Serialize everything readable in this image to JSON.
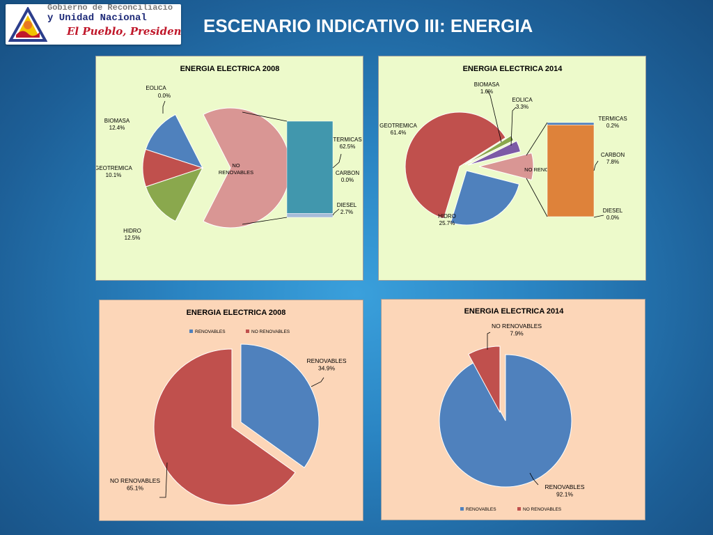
{
  "header": {
    "title": "ESCENARIO INDICATIVO III: ENERGIA",
    "logo_line1": "Gobierno de Reconciliacio",
    "logo_line2": "y Unidad Nacional",
    "logo_line3": "El Pueblo, Presidente!"
  },
  "colors": {
    "blue": "#4f81bd",
    "red": "#c0504d",
    "green": "#8aa84d",
    "purple": "#7d5ba6",
    "pink": "#d99694",
    "teal": "#4197ad",
    "orange": "#de823a",
    "lightblue": "#a6bcd8",
    "panel_green": "#edfacb",
    "panel_peach": "#fcd6b8"
  },
  "chart_data": [
    {
      "type": "pie",
      "subtype": "pie-of-bar",
      "title": "ENERGIA ELECTRICA 2008",
      "slices": [
        {
          "name": "EOLICA",
          "value": 0.0,
          "label": "0.0%"
        },
        {
          "name": "BIOMASA",
          "value": 12.4,
          "label": "12.4%"
        },
        {
          "name": "GEOTREMICA",
          "value": 10.1,
          "label": "10.1%"
        },
        {
          "name": "HIDRO",
          "value": 12.5,
          "label": "12.5%"
        },
        {
          "name": "NO RENOVABLES",
          "value": 65.0,
          "label": ""
        }
      ],
      "bar_segments": [
        {
          "name": "TERMICAS",
          "value": 62.5,
          "label": "62.5%"
        },
        {
          "name": "CARBON",
          "value": 0.0,
          "label": "0.0%"
        },
        {
          "name": "DIESEL",
          "value": 2.7,
          "label": "2.7%"
        }
      ]
    },
    {
      "type": "pie",
      "subtype": "pie-of-bar",
      "title": "ENERGIA ELECTRICA 2014",
      "slices": [
        {
          "name": "GEOTREMICA",
          "value": 61.4,
          "label": "61.4%"
        },
        {
          "name": "BIOMASA",
          "value": 1.6,
          "label": "1.6%"
        },
        {
          "name": "EOLICA",
          "value": 3.3,
          "label": "3.3%"
        },
        {
          "name": "NO RENOVABLES",
          "value": 8.0,
          "label": ""
        },
        {
          "name": "HIDRO",
          "value": 25.7,
          "label": "25.7%"
        }
      ],
      "bar_segments": [
        {
          "name": "TERMICAS",
          "value": 0.2,
          "label": "0.2%"
        },
        {
          "name": "CARBON",
          "value": 7.8,
          "label": "7.8%"
        },
        {
          "name": "DIESEL",
          "value": 0.0,
          "label": "0.0%"
        }
      ]
    },
    {
      "type": "pie",
      "title": "ENERGIA ELECTRICA 2008",
      "legend": [
        "RENOVABLES",
        "NO RENOVABLES"
      ],
      "legend_position": "top",
      "slices": [
        {
          "name": "RENOVABLES",
          "value": 34.9,
          "label": "34.9%"
        },
        {
          "name": "NO RENOVABLES",
          "value": 65.1,
          "label": "65.1%"
        }
      ]
    },
    {
      "type": "pie",
      "title": "ENERGIA ELECTRICA 2014",
      "legend": [
        "RENOVABLES",
        "NO RENOVABLES"
      ],
      "legend_position": "bottom",
      "slices": [
        {
          "name": "RENOVABLES",
          "value": 92.1,
          "label": "92.1%"
        },
        {
          "name": "NO RENOVABLES",
          "value": 7.9,
          "label": "7.9%"
        }
      ]
    }
  ]
}
